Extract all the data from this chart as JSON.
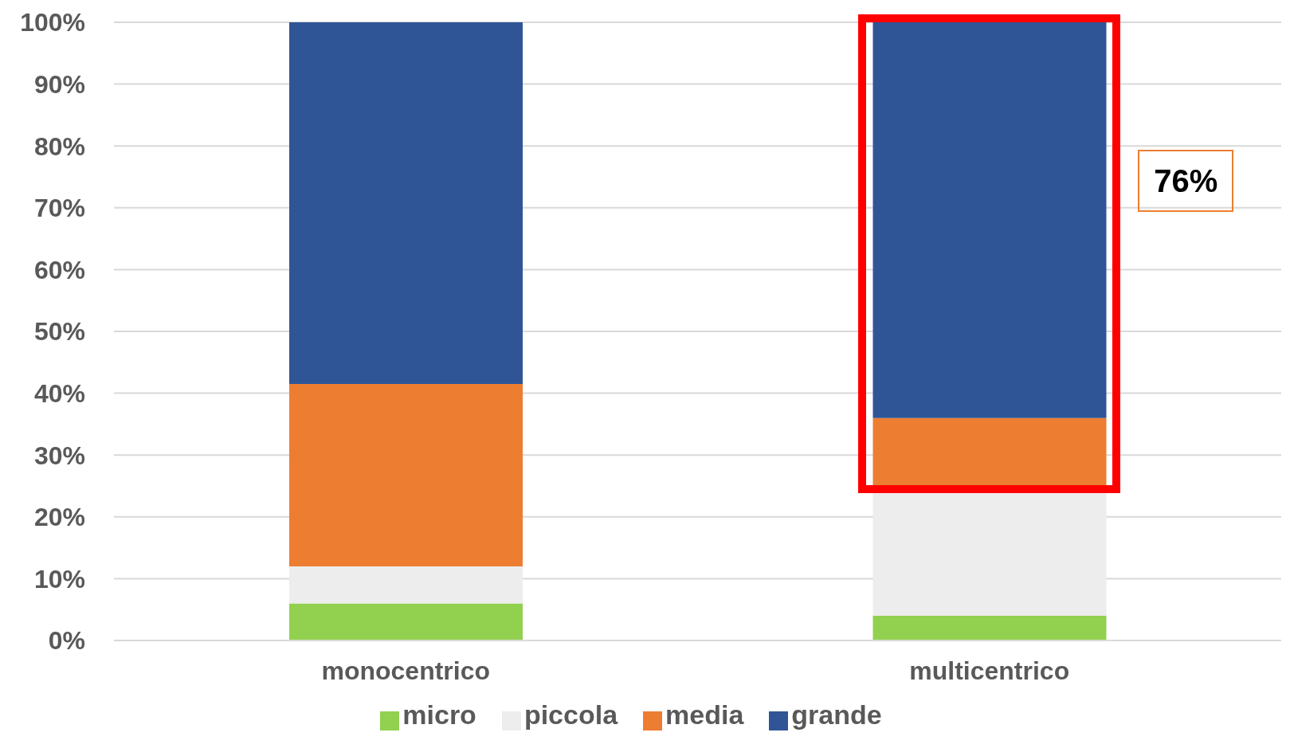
{
  "chart_data": {
    "type": "bar",
    "stacked": true,
    "categories": [
      "monocentrico",
      "multicentrico"
    ],
    "series": [
      {
        "name": "micro",
        "color": "#92d050",
        "values": [
          6,
          4
        ]
      },
      {
        "name": "piccola",
        "color": "#ededed",
        "values": [
          6,
          20
        ]
      },
      {
        "name": "media",
        "color": "#ed7d31",
        "values": [
          29.5,
          12
        ]
      },
      {
        "name": "grande",
        "color": "#2f5597",
        "values": [
          58.5,
          64
        ]
      }
    ],
    "ylim": [
      0,
      100
    ],
    "yticks": [
      {
        "value": 0,
        "label": "0%"
      },
      {
        "value": 10,
        "label": "10%"
      },
      {
        "value": 20,
        "label": "20%"
      },
      {
        "value": 30,
        "label": "30%"
      },
      {
        "value": 40,
        "label": "40%"
      },
      {
        "value": 50,
        "label": "50%"
      },
      {
        "value": 60,
        "label": "60%"
      },
      {
        "value": 70,
        "label": "70%"
      },
      {
        "value": 80,
        "label": "80%"
      },
      {
        "value": 90,
        "label": "90%"
      },
      {
        "value": 100,
        "label": "100%"
      }
    ],
    "grid": "y",
    "legend": "bottom",
    "annotations": [
      "76%"
    ]
  }
}
